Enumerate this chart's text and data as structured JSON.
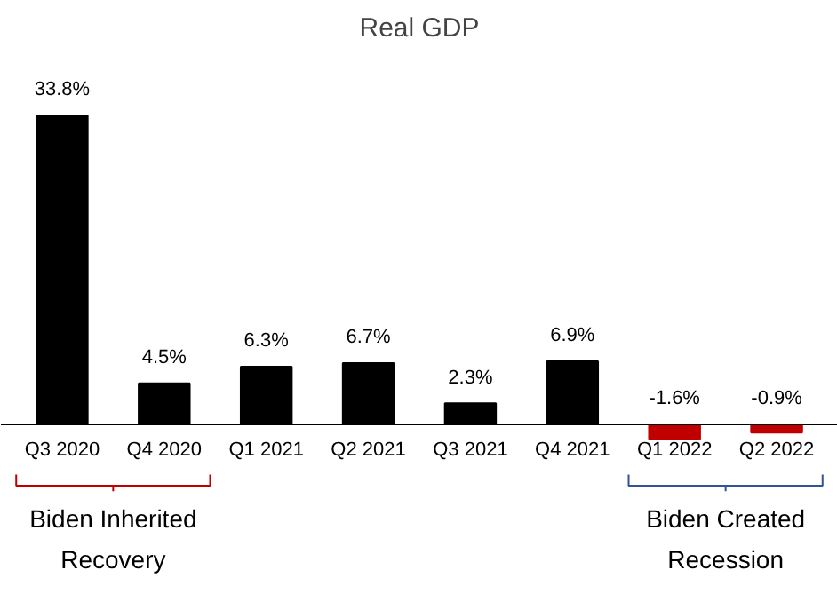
{
  "chart_data": {
    "type": "bar",
    "title": "Real GDP",
    "categories": [
      "Q3 2020",
      "Q4 2020",
      "Q1 2021",
      "Q2 2021",
      "Q3 2021",
      "Q4 2021",
      "Q1 2022",
      "Q2 2022"
    ],
    "values": [
      33.8,
      4.5,
      6.3,
      6.7,
      2.3,
      6.9,
      -1.6,
      -0.9
    ],
    "colors": [
      "#000000",
      "#000000",
      "#000000",
      "#000000",
      "#000000",
      "#000000",
      "#c00000",
      "#c00000"
    ],
    "value_labels": [
      "33.8%",
      "4.5%",
      "6.3%",
      "6.7%",
      "2.3%",
      "6.9%",
      "-1.6%",
      "-0.9%"
    ],
    "annotations": [
      "Biden Inherited Recovery",
      "Biden Created Recession"
    ],
    "grid": false
  }
}
